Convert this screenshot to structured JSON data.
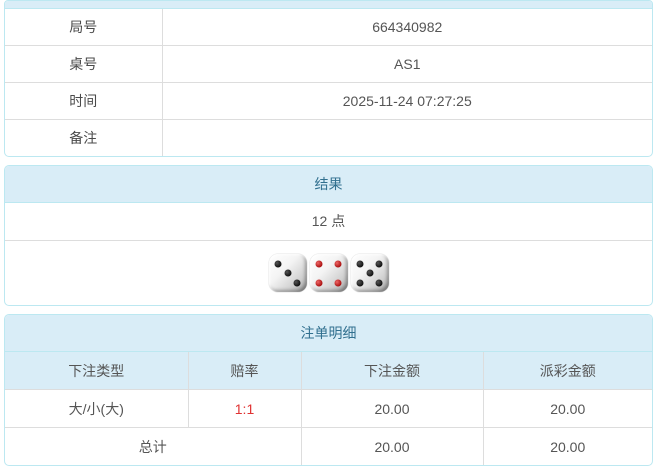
{
  "colors": {
    "heading_bg": "#d9edf7",
    "heading_text": "#31708f",
    "panel_border": "#bce8f1",
    "divider": "#dddddd",
    "body_text": "#555555",
    "odds_red": "#e03333",
    "pip_black": "#111111",
    "pip_red": "#aa1111"
  },
  "info": {
    "rows": [
      {
        "label": "局号",
        "value": "664340982"
      },
      {
        "label": "桌号",
        "value": "AS1"
      },
      {
        "label": "时间",
        "value": "2025-11-24 07:27:25"
      },
      {
        "label": "备注",
        "value": ""
      }
    ]
  },
  "result": {
    "title": "结果",
    "points": "12 点",
    "dice": [
      {
        "value": 3,
        "color": "black"
      },
      {
        "value": 4,
        "color": "red"
      },
      {
        "value": 5,
        "color": "black"
      }
    ]
  },
  "bets": {
    "title": "注单明细",
    "columns": [
      "下注类型",
      "赔率",
      "下注金额",
      "派彩金额"
    ],
    "rows": [
      {
        "type": "大/小(大)",
        "odds": "1:1",
        "amount": "20.00",
        "payout": "20.00"
      }
    ],
    "total": {
      "label": "总计",
      "amount": "20.00",
      "payout": "20.00"
    }
  }
}
